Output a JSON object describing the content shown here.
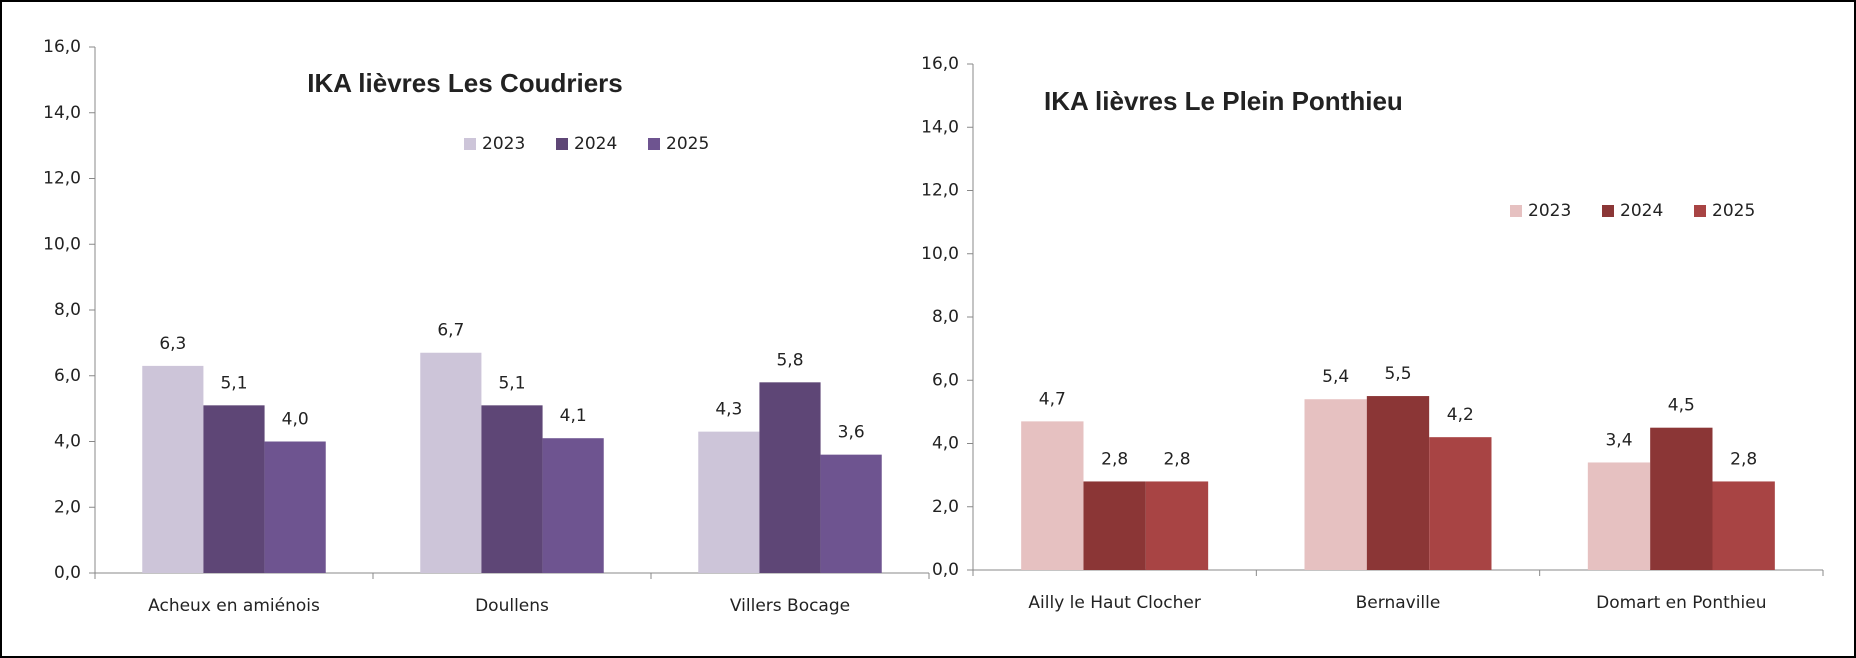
{
  "chart_data": [
    {
      "type": "bar",
      "title": "IKA lièvres Les Coudriers",
      "categories": [
        "Acheux en amiénois",
        "Doullens",
        "Villers Bocage"
      ],
      "series": [
        {
          "name": "2023",
          "color": "#cdc5d9",
          "values": [
            6.3,
            6.7,
            4.3
          ],
          "value_labels": [
            "6,3",
            "6,7",
            "4,3"
          ]
        },
        {
          "name": "2024",
          "color": "#5e4676",
          "values": [
            5.1,
            5.1,
            5.8
          ],
          "value_labels": [
            "5,1",
            "5,1",
            "5,8"
          ]
        },
        {
          "name": "2025",
          "color": "#6e5490",
          "values": [
            4.0,
            4.1,
            3.6
          ],
          "value_labels": [
            "4,0",
            "4,1",
            "3,6"
          ]
        }
      ],
      "ylim": [
        0,
        16
      ],
      "yticks": [
        {
          "value": 0,
          "label": "0,0"
        },
        {
          "value": 2,
          "label": "2,0"
        },
        {
          "value": 4,
          "label": "4,0"
        },
        {
          "value": 6,
          "label": "6,0"
        },
        {
          "value": 8,
          "label": "8,0"
        },
        {
          "value": 10,
          "label": "10,0"
        },
        {
          "value": 12,
          "label": "12,0"
        },
        {
          "value": 14,
          "label": "14,0"
        },
        {
          "value": 16,
          "label": "16,0"
        }
      ]
    },
    {
      "type": "bar",
      "title": "IKA lièvres Le Plein Ponthieu",
      "categories": [
        "Ailly le Haut Clocher",
        "Bernaville",
        "Domart en Ponthieu"
      ],
      "series": [
        {
          "name": "2023",
          "color": "#e6c1c1",
          "values": [
            4.7,
            5.4,
            3.4
          ],
          "value_labels": [
            "4,7",
            "5,4",
            "3,4"
          ]
        },
        {
          "name": "2024",
          "color": "#8b3636",
          "values": [
            2.8,
            5.5,
            4.5
          ],
          "value_labels": [
            "2,8",
            "5,5",
            "4,5"
          ]
        },
        {
          "name": "2025",
          "color": "#a84444",
          "values": [
            2.8,
            4.2,
            2.8
          ],
          "value_labels": [
            "2,8",
            "4,2",
            "2,8"
          ]
        }
      ],
      "ylim": [
        0,
        16
      ],
      "yticks": [
        {
          "value": 0,
          "label": "0,0"
        },
        {
          "value": 2,
          "label": "2,0"
        },
        {
          "value": 4,
          "label": "4,0"
        },
        {
          "value": 6,
          "label": "6,0"
        },
        {
          "value": 8,
          "label": "8,0"
        },
        {
          "value": 10,
          "label": "10,0"
        },
        {
          "value": 12,
          "label": "12,0"
        },
        {
          "value": 14,
          "label": "14,0"
        },
        {
          "value": 16,
          "label": "16,0"
        }
      ]
    }
  ]
}
